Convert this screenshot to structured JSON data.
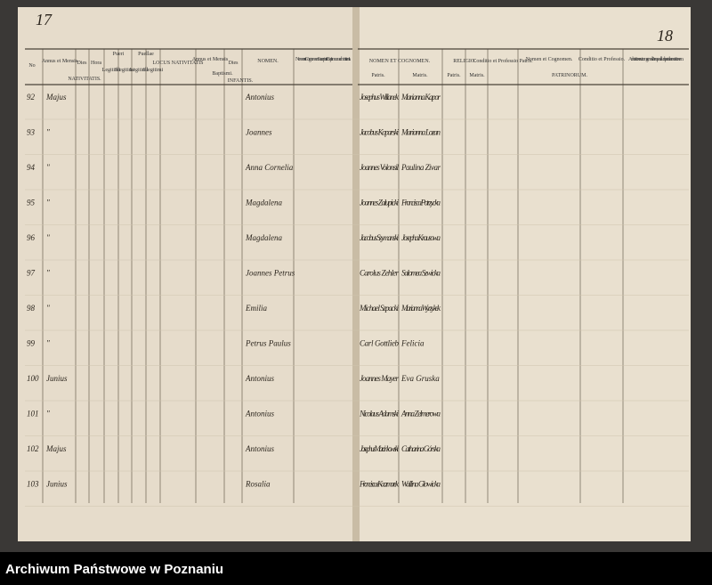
{
  "page_numbers": [
    "17",
    "18"
  ],
  "left_header": {
    "no": "No",
    "annus_nat": "Annus et Mensis",
    "dies_nat": "Dies",
    "hora": "Hora",
    "pueri": "Pueri",
    "puellae": "Puellae",
    "legitimi_1": "Legitimi",
    "illegitimi_1": "Illegitimi",
    "legitimi_2": "Legitimi",
    "illegitimi_2": "Illegitimi",
    "locus": "LOCUS NATIVITATIS",
    "annus_bapt": "Annus et Mensis",
    "dies_bapt": "Dies",
    "nomen": "NOMEN.",
    "susceptor": "Nomen et Cognomen Susceptoris Baptismum administrantis.",
    "nativitatis": "NATIVITATIS.",
    "baptismi": "Baptismi.",
    "infantis": "INFANTIS."
  },
  "right_header": {
    "nomen_cognomen": "NOMEN ET COGNOMEN.",
    "patris_1": "Patris.",
    "matris_1": "Matris.",
    "religio": "RELIGIO.",
    "patris_2": "Patris.",
    "matris_2": "Matris.",
    "conditio_patris": "Conditio et Professio Patris.",
    "nomen_patrinorum": "Nomen et Cognomen.",
    "conditio_patrinorum": "Conditio et Professio.",
    "patrinorum": "PATRINORUM.",
    "adnotationes": "Adnotationes utrum gemelli? an quod aliud spectale annotationem."
  },
  "rows": [
    {
      "no": "92",
      "mensis": "Majus",
      "nomen": "Antonius",
      "pater": "Josephus Willanek",
      "mater": "Marianna Kapor"
    },
    {
      "no": "93",
      "mensis": "\"",
      "nomen": "Joannes",
      "pater": "Jacobus Koparski",
      "mater": "Marianna Lozan"
    },
    {
      "no": "94",
      "mensis": "\"",
      "nomen": "Anna Cornelia",
      "pater": "Joannes Volonsil",
      "mater": "Paulina Zivar"
    },
    {
      "no": "95",
      "mensis": "\"",
      "nomen": "Magdalena",
      "pater": "Joannes Zalupicki",
      "mater": "Francisca Potrzycka"
    },
    {
      "no": "96",
      "mensis": "\"",
      "nomen": "Magdalena",
      "pater": "Jacobus Szymanski",
      "mater": "Josepha Krausowa"
    },
    {
      "no": "97",
      "mensis": "\"",
      "nomen": "Joannes Petrus",
      "pater": "Carolus Zehler",
      "mater": "Salomea Szwicka"
    },
    {
      "no": "98",
      "mensis": "\"",
      "nomen": "Emilia",
      "pater": "Michael Szpacki",
      "mater": "Marianna Wyrzykek"
    },
    {
      "no": "99",
      "mensis": "\"",
      "nomen": "Petrus Paulus",
      "pater": "Carl Gottlieb",
      "mater": "Felicia"
    },
    {
      "no": "100",
      "mensis": "Junius",
      "nomen": "Antonius",
      "pater": "Joannes Mayer",
      "mater": "Eva Gruska"
    },
    {
      "no": "101",
      "mensis": "\"",
      "nomen": "Antonius",
      "pater": "Nicolaus Adamski",
      "mater": "Anna Zelmerowa"
    },
    {
      "no": "102",
      "mensis": "Majus",
      "nomen": "Antonius",
      "pater": "Josephus Marcinkowski",
      "mater": "Catharina Górska"
    },
    {
      "no": "103",
      "mensis": "Junius",
      "nomen": "Rosalia",
      "pater": "Franciscus Kaczmarek",
      "mater": "Wallina Glowicka"
    }
  ],
  "footer": "Archiwum Państwowe w Poznaniu"
}
